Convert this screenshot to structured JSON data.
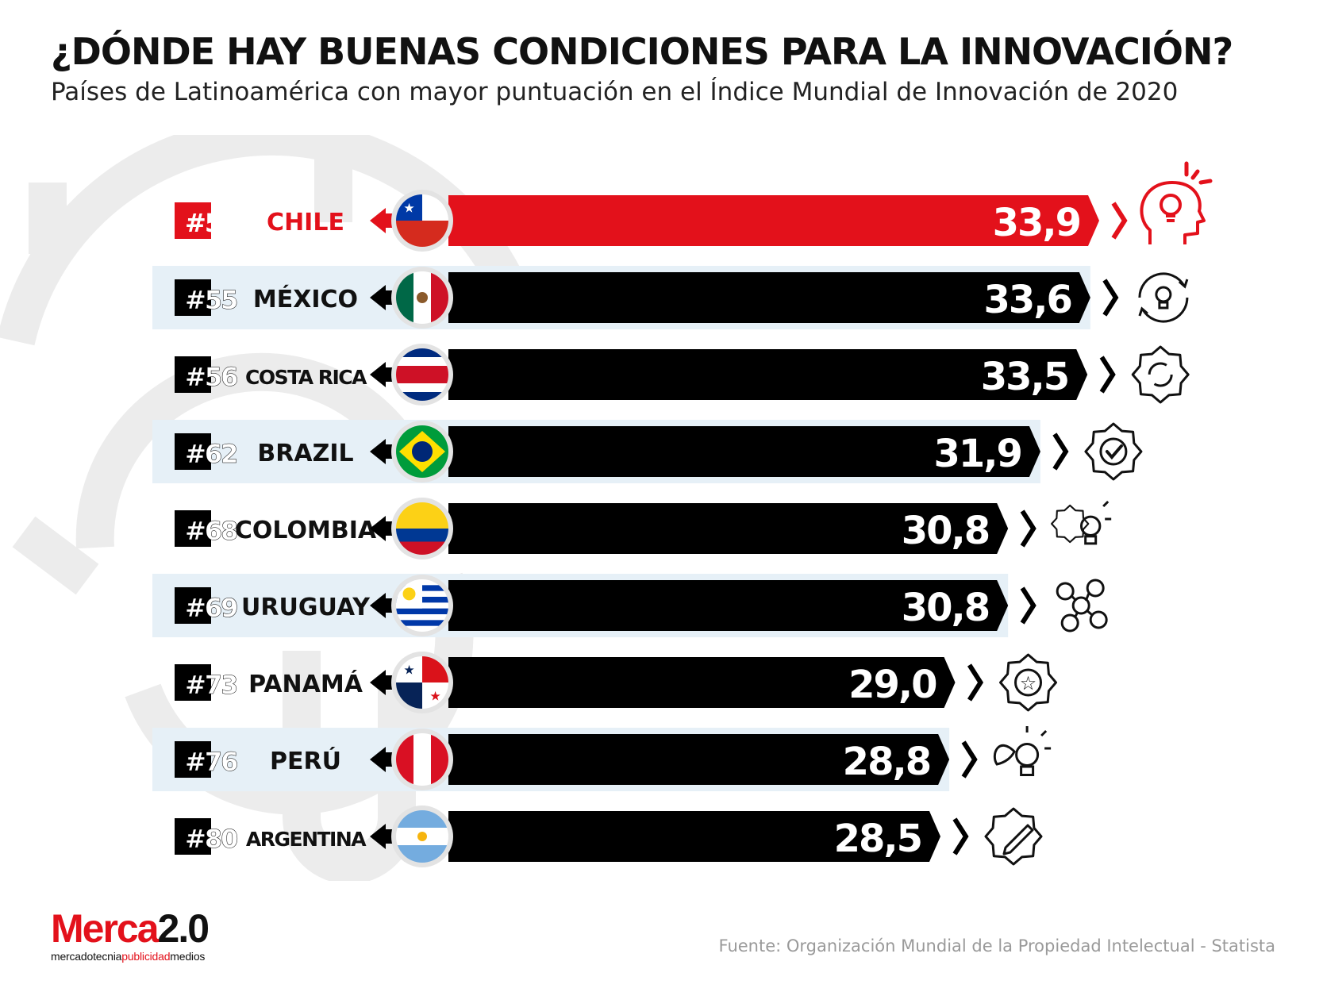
{
  "title": "¿DÓNDE HAY BUENAS CONDICIONES PARA LA INNOVACIÓN?",
  "subtitle": "Países de Latinoamérica con mayor puntuación en el Índice Mundial de Innovación de 2020",
  "source": "Fuente:  Organización Mundial de la Propiedad Intelectual - Statista",
  "logo": {
    "part1": "Merca",
    "part2": "2.0",
    "tag1": "mercadotecnia",
    "tag2": "publicidad",
    "tag3": "medios"
  },
  "colors": {
    "accent": "#e3111b",
    "bar": "#000000",
    "stripe": "#e6f0f7",
    "highlight": "#e3111b"
  },
  "chart_data": {
    "type": "bar",
    "orientation": "horizontal",
    "xlim": [
      0,
      33.9
    ],
    "categories": [
      "CHILE",
      "MÉXICO",
      "COSTA RICA",
      "BRAZIL",
      "COLOMBIA",
      "URUGUAY",
      "PANAMÁ",
      "PERÚ",
      "ARGENTINA"
    ],
    "ranks": [
      "#54",
      "#55",
      "#56",
      "#62",
      "#68",
      "#69",
      "#73",
      "#76",
      "#80"
    ],
    "values": [
      33.9,
      33.6,
      33.5,
      31.9,
      30.8,
      30.8,
      29.0,
      28.8,
      28.5
    ],
    "value_labels": [
      "33,9",
      "33,6",
      "33,5",
      "31,9",
      "30,8",
      "30,8",
      "29,0",
      "28,8",
      "28,5"
    ],
    "flags": [
      "chile-flag",
      "mexico-flag",
      "costa-rica-flag",
      "brazil-flag",
      "colombia-flag",
      "uruguay-flag",
      "panama-flag",
      "peru-flag",
      "argentina-flag"
    ],
    "icons": [
      "head-lightbulb-icon",
      "lightbulb-cycle-icon",
      "gear-cycle-icon",
      "gear-check-icon",
      "gear-lightbulb-icon",
      "network-nodes-icon",
      "gear-star-icon",
      "leaf-lightbulb-icon",
      "gear-pencil-icon"
    ],
    "highlight_index": 0
  }
}
